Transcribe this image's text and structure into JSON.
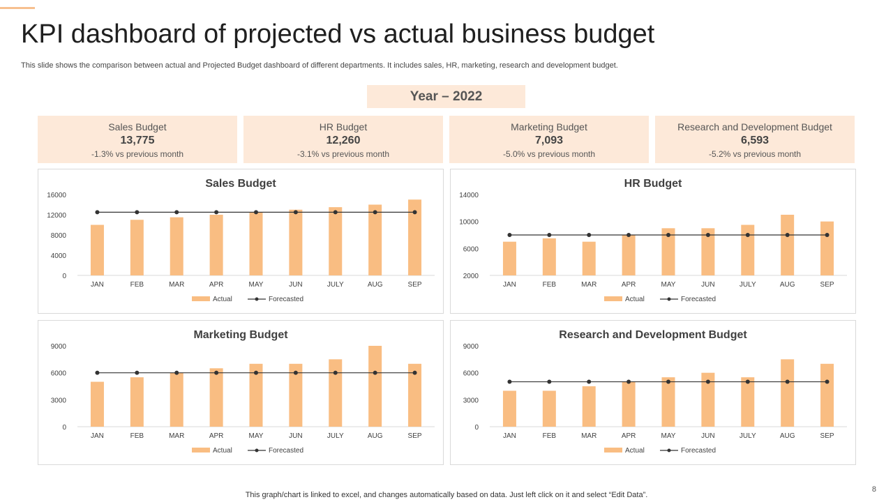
{
  "title": "KPI dashboard of projected vs actual business budget",
  "subtitle": "This slide shows the comparison between actual and Projected Budget dashboard of different departments. It includes sales, HR, marketing, research and development budget.",
  "year_label": "Year – 2022",
  "kpis": [
    {
      "name": "Sales Budget",
      "value": "13,775",
      "change": "-1.3% vs previous month"
    },
    {
      "name": "HR Budget",
      "value": "12,260",
      "change": "-3.1% vs previous month"
    },
    {
      "name": "Marketing Budget",
      "value": "7,093",
      "change": "-5.0% vs previous month"
    },
    {
      "name": "Research and Development Budget",
      "value": "6,593",
      "change": "-5.2% vs previous month"
    }
  ],
  "colors": {
    "bar": "#f9bd82",
    "line": "#333333",
    "axis": "#d9d9d9",
    "panel": "#fde9d9"
  },
  "chart_data": [
    {
      "type": "bar",
      "title": "Sales Budget",
      "categories": [
        "JAN",
        "FEB",
        "MAR",
        "APR",
        "MAY",
        "JUN",
        "JULY",
        "AUG",
        "SEP"
      ],
      "series": [
        {
          "name": "Actual",
          "kind": "bar",
          "values": [
            10000,
            11000,
            11500,
            12000,
            12500,
            13000,
            13500,
            14000,
            15000
          ]
        },
        {
          "name": "Forecasted",
          "kind": "line",
          "values": [
            12500,
            12500,
            12500,
            12500,
            12500,
            12500,
            12500,
            12500,
            12500
          ]
        }
      ],
      "ylim": [
        0,
        16000
      ],
      "yticks": [
        0,
        4000,
        8000,
        12000,
        16000
      ]
    },
    {
      "type": "bar",
      "title": "HR Budget",
      "categories": [
        "JAN",
        "FEB",
        "MAR",
        "APR",
        "MAY",
        "JUN",
        "JULY",
        "AUG",
        "SEP"
      ],
      "series": [
        {
          "name": "Actual",
          "kind": "bar",
          "values": [
            7000,
            7500,
            7000,
            8000,
            9000,
            9000,
            9500,
            11000,
            10000
          ]
        },
        {
          "name": "Forecasted",
          "kind": "line",
          "values": [
            8000,
            8000,
            8000,
            8000,
            8000,
            8000,
            8000,
            8000,
            8000
          ]
        }
      ],
      "ylim": [
        2000,
        14000
      ],
      "yticks": [
        2000,
        6000,
        10000,
        14000
      ]
    },
    {
      "type": "bar",
      "title": "Marketing Budget",
      "categories": [
        "JAN",
        "FEB",
        "MAR",
        "APR",
        "MAY",
        "JUN",
        "JULY",
        "AUG",
        "SEP"
      ],
      "series": [
        {
          "name": "Actual",
          "kind": "bar",
          "values": [
            5000,
            5500,
            6000,
            6500,
            7000,
            7000,
            7500,
            9000,
            7000
          ]
        },
        {
          "name": "Forecasted",
          "kind": "line",
          "values": [
            6000,
            6000,
            6000,
            6000,
            6000,
            6000,
            6000,
            6000,
            6000
          ]
        }
      ],
      "ylim": [
        0,
        9000
      ],
      "yticks": [
        0,
        3000,
        6000,
        9000
      ]
    },
    {
      "type": "bar",
      "title": "Research and Development Budget",
      "categories": [
        "JAN",
        "FEB",
        "MAR",
        "APR",
        "MAY",
        "JUN",
        "JULY",
        "AUG",
        "SEP"
      ],
      "series": [
        {
          "name": "Actual",
          "kind": "bar",
          "values": [
            4000,
            4000,
            4500,
            5000,
            5500,
            6000,
            5500,
            7500,
            7000
          ]
        },
        {
          "name": "Forecasted",
          "kind": "line",
          "values": [
            5000,
            5000,
            5000,
            5000,
            5000,
            5000,
            5000,
            5000,
            5000
          ]
        }
      ],
      "ylim": [
        0,
        9000
      ],
      "yticks": [
        0,
        3000,
        6000,
        9000
      ]
    }
  ],
  "footer": "This graph/chart is linked to excel,  and changes automatically based on data. Just left click on it and select “Edit Data”.",
  "page_number": "8"
}
